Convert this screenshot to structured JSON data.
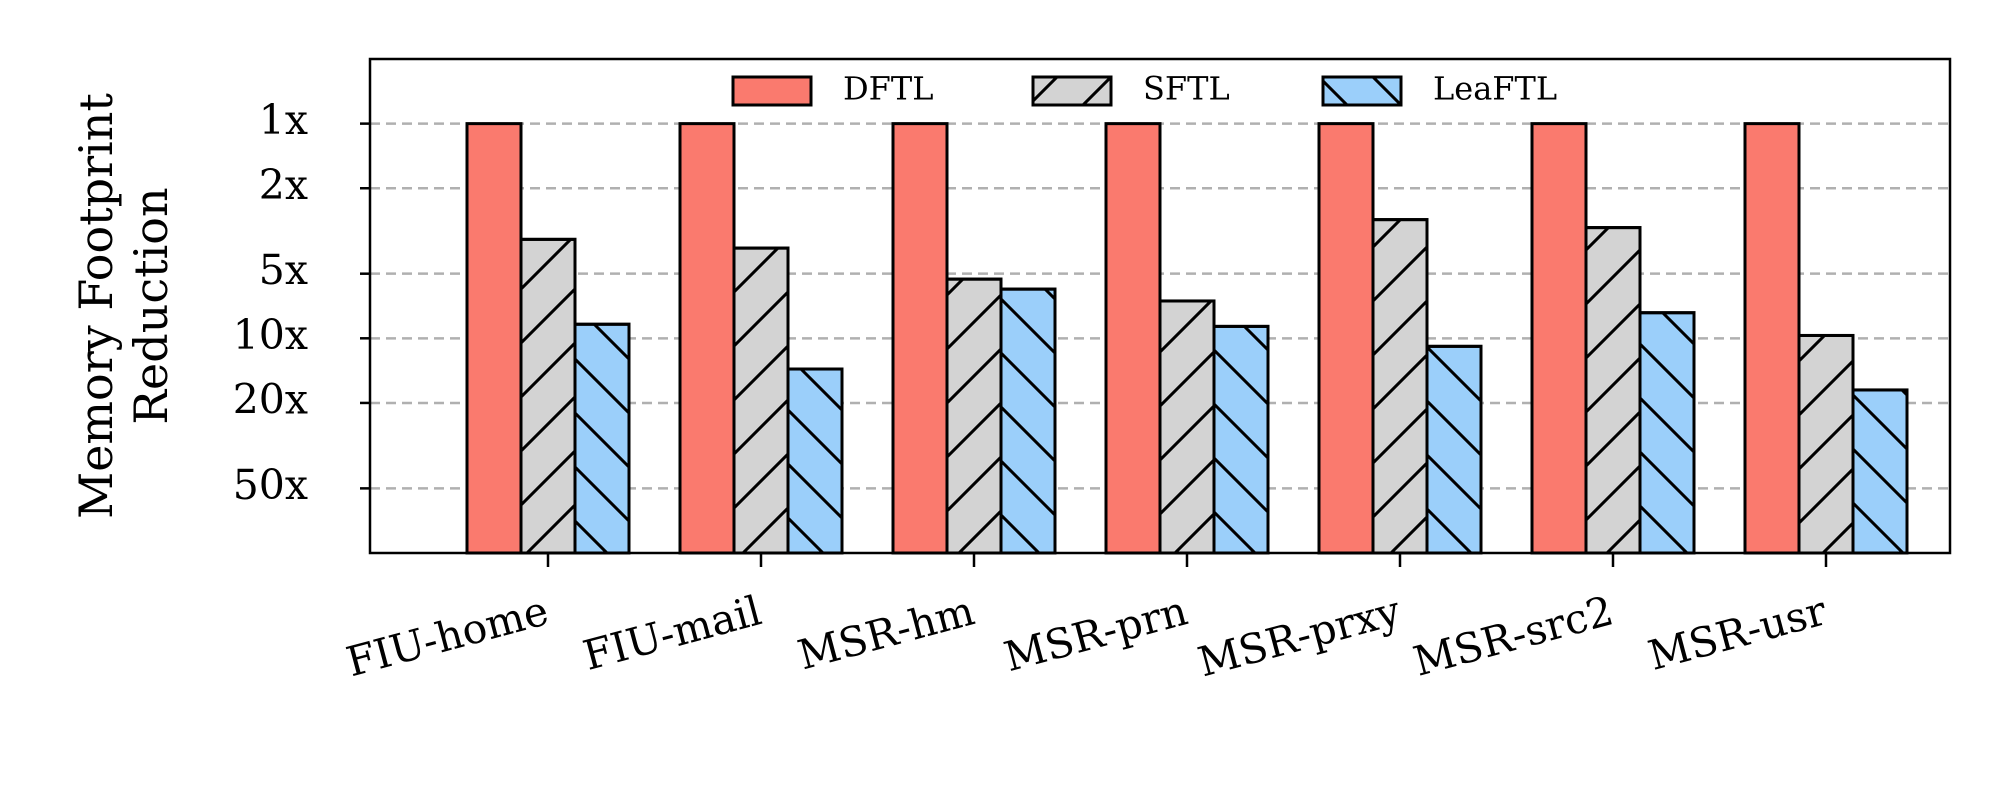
{
  "chart_data": {
    "type": "bar",
    "ylabel": [
      "Memory Footprint",
      "Reduction"
    ],
    "categories": [
      "FIU-home",
      "FIU-mail",
      "MSR-hm",
      "MSR-prn",
      "MSR-prxy",
      "MSR-src2",
      "MSR-usr"
    ],
    "series": [
      {
        "name": "DFTL",
        "color": "#fa7a6e",
        "hatch": null,
        "values": [
          1,
          1,
          1,
          1,
          1,
          1,
          1
        ]
      },
      {
        "name": "SFTL",
        "color": "#d3d3d3",
        "hatch": "/",
        "values": [
          3.46,
          3.8,
          5.3,
          6.7,
          2.8,
          3.05,
          9.7
        ]
      },
      {
        "name": "LeaFTL",
        "color": "#9bcffa",
        "hatch": "\\",
        "values": [
          8.6,
          13.9,
          5.9,
          8.8,
          10.9,
          7.6,
          17.4
        ]
      }
    ],
    "log_y": true,
    "y_inverted": true,
    "ylim": [
      0.5,
      100
    ],
    "yticks": [
      {
        "value": 1,
        "label": "1x"
      },
      {
        "value": 2,
        "label": "2x"
      },
      {
        "value": 5,
        "label": "5x"
      },
      {
        "value": 10,
        "label": "10x"
      },
      {
        "value": 20,
        "label": "20x"
      },
      {
        "value": 50,
        "label": "50x"
      }
    ],
    "grid": true,
    "legend": "upper center"
  }
}
